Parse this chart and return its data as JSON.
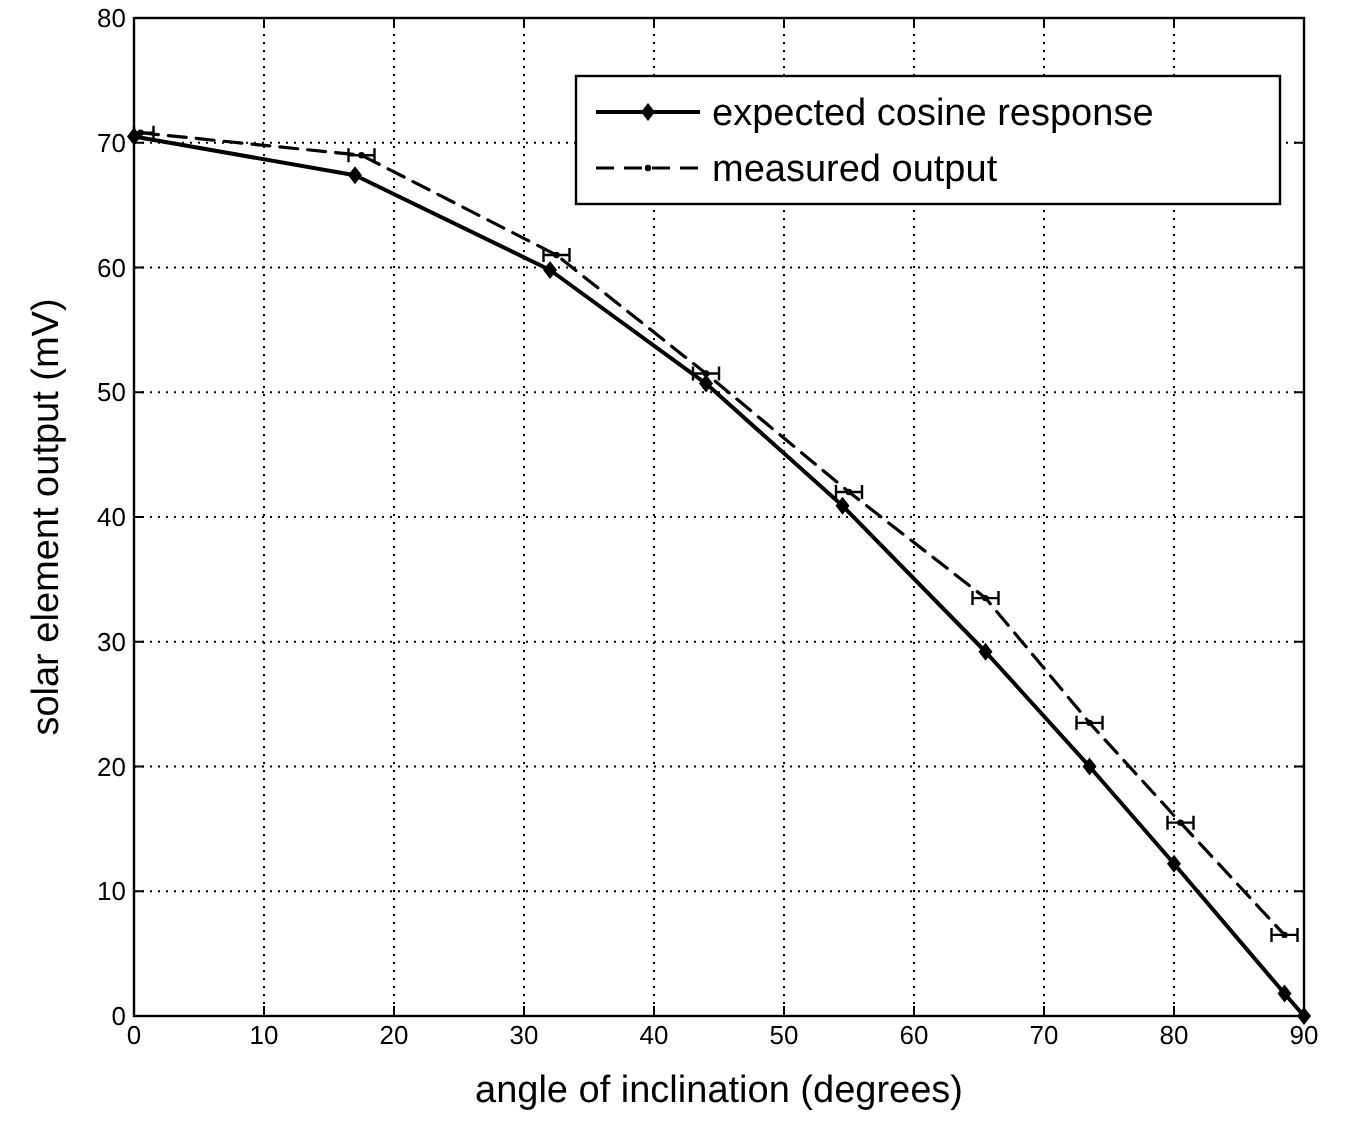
{
  "chart_data": {
    "type": "line",
    "xlabel": "angle of inclination (degrees)",
    "ylabel": "solar element output (mV)",
    "xlim": [
      0,
      90
    ],
    "xticks": [
      0,
      10,
      20,
      30,
      40,
      50,
      60,
      70,
      80,
      90
    ],
    "ylim": [
      0,
      80
    ],
    "yticks": [
      0,
      10,
      20,
      30,
      40,
      50,
      60,
      70,
      80
    ],
    "grid": true,
    "legend": "top right",
    "series": [
      {
        "name": "expected cosine response",
        "color": "#000000",
        "marker": "diamond",
        "line_style": "solid",
        "x": [
          0,
          17,
          32,
          44,
          54.5,
          65.5,
          73.5,
          80,
          88.5,
          90
        ],
        "values": [
          70.5,
          67.4,
          59.8,
          50.7,
          40.9,
          29.2,
          20.0,
          12.2,
          1.8,
          0
        ]
      },
      {
        "name": "measured output",
        "color": "#000000",
        "marker": "circle",
        "line_style": "dashed",
        "x": [
          0.5,
          17.5,
          32.5,
          44,
          55,
          65.5,
          73.5,
          80.5,
          88.5
        ],
        "values": [
          70.8,
          69.0,
          61.0,
          51.5,
          42.0,
          33.5,
          23.5,
          15.5,
          6.5
        ],
        "xerrors": [
          [
            0,
            1.5
          ],
          1,
          1,
          1,
          1,
          1,
          1,
          1,
          1
        ]
      }
    ]
  }
}
